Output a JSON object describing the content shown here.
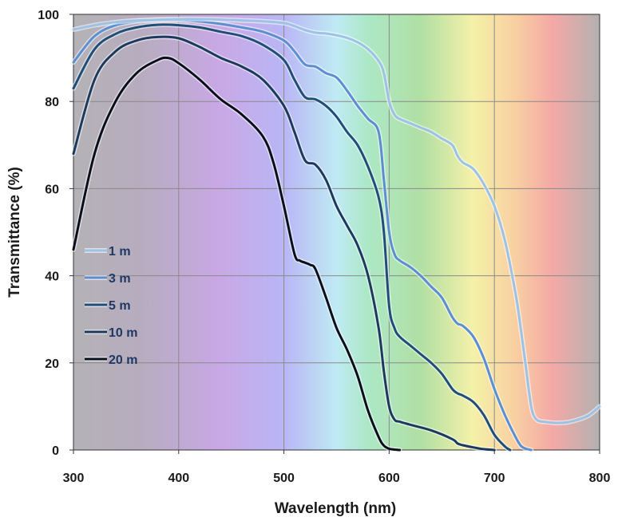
{
  "chart_data": {
    "type": "line",
    "xlabel": "Wavelength (nm)",
    "ylabel": "Transmittance (%)",
    "xlim": [
      300,
      800
    ],
    "ylim": [
      0,
      100
    ],
    "xticks": [
      300,
      400,
      500,
      600,
      700,
      800
    ],
    "yticks": [
      0,
      20,
      40,
      60,
      80,
      100
    ],
    "grid": true,
    "legend_position": "left",
    "background": "visible spectrum gradient",
    "spectrum_colors": [
      "#b3b3b3",
      "#c3a6e0",
      "#b7b7f5",
      "#bdeef2",
      "#a9e6b5",
      "#b0e0a2",
      "#f8f0a4",
      "#fbd0a0",
      "#f5a6a0",
      "#b3b3b3"
    ],
    "series": [
      {
        "name": "1 m",
        "color": "#9cc3e6",
        "x": [
          300,
          320,
          340,
          360,
          380,
          400,
          420,
          440,
          460,
          480,
          500,
          510,
          520,
          530,
          540,
          550,
          560,
          570,
          580,
          590,
          595,
          600,
          605,
          610,
          620,
          630,
          640,
          650,
          660,
          665,
          670,
          680,
          690,
          700,
          710,
          720,
          725,
          730,
          735,
          740,
          750,
          760,
          770,
          780,
          790,
          800
        ],
        "y": [
          96.5,
          97.5,
          98.2,
          98.6,
          98.8,
          98.9,
          98.9,
          98.8,
          98.6,
          98.4,
          98,
          97.3,
          96.4,
          95.8,
          95.6,
          95.2,
          94.6,
          93.6,
          92,
          89.3,
          86.5,
          80,
          77,
          76,
          75,
          74,
          73,
          71.5,
          70,
          67.5,
          66,
          64.5,
          61,
          56,
          48,
          36,
          28,
          19,
          10,
          7,
          6.4,
          6.2,
          6.4,
          7,
          8,
          10
        ]
      },
      {
        "name": "3 m",
        "color": "#5b8fd1",
        "x": [
          300,
          320,
          340,
          360,
          380,
          400,
          420,
          440,
          460,
          480,
          500,
          510,
          520,
          530,
          540,
          550,
          560,
          570,
          580,
          590,
          595,
          600,
          605,
          610,
          620,
          630,
          640,
          650,
          660,
          665,
          670,
          680,
          690,
          700,
          710,
          720,
          725,
          730,
          735
        ],
        "y": [
          89,
          95,
          97.5,
          98.4,
          98.7,
          98.7,
          98.4,
          97.8,
          97,
          96,
          94,
          91.5,
          88.5,
          88,
          86.5,
          85.5,
          82.5,
          79,
          76,
          73,
          62,
          50,
          45,
          43.5,
          42,
          40,
          37.5,
          35,
          30.5,
          29,
          28.5,
          26,
          21,
          14,
          8,
          3,
          1,
          0.3,
          0
        ]
      },
      {
        "name": "5 m",
        "color": "#1f4e79",
        "x": [
          300,
          320,
          340,
          360,
          380,
          400,
          420,
          440,
          460,
          480,
          500,
          510,
          520,
          530,
          540,
          550,
          560,
          570,
          580,
          590,
          595,
          600,
          605,
          610,
          620,
          630,
          640,
          650,
          660,
          665,
          670,
          680,
          690,
          700,
          710,
          715
        ],
        "y": [
          83,
          92,
          95.5,
          97,
          97.6,
          97.5,
          97,
          96,
          95,
          93,
          89.5,
          85,
          81,
          80.5,
          79,
          76.5,
          73,
          70,
          65,
          58,
          50,
          33,
          28,
          26,
          24,
          22,
          20,
          17.5,
          14,
          13,
          12.5,
          11,
          8,
          3.5,
          0.8,
          0
        ]
      },
      {
        "name": "10 m",
        "color": "#1b3a5e",
        "x": [
          300,
          320,
          340,
          360,
          380,
          400,
          420,
          440,
          460,
          480,
          500,
          510,
          520,
          530,
          540,
          550,
          560,
          570,
          580,
          590,
          595,
          600,
          605,
          610,
          620,
          640,
          660,
          665,
          670,
          680,
          690,
          700
        ],
        "y": [
          68,
          85,
          91.5,
          94,
          94.8,
          94.5,
          92.5,
          90,
          88,
          85,
          79,
          73,
          66.5,
          65.5,
          62,
          56,
          51.5,
          47,
          40,
          28,
          18,
          10,
          7,
          6.5,
          5.8,
          4.5,
          2.5,
          1.5,
          1.1,
          0.6,
          0.2,
          0
        ]
      },
      {
        "name": "20 m",
        "color": "#0a0f1c",
        "x": [
          300,
          320,
          340,
          360,
          380,
          390,
          400,
          420,
          440,
          460,
          480,
          490,
          500,
          510,
          515,
          520,
          525,
          530,
          540,
          550,
          560,
          570,
          580,
          590,
          595,
          600,
          605,
          610
        ],
        "y": [
          46,
          68,
          80,
          86.5,
          89.5,
          90,
          88.8,
          85,
          80.5,
          77,
          72,
          66,
          56,
          45,
          43.5,
          43,
          42.5,
          41.5,
          35,
          28,
          23,
          17,
          9,
          3,
          1,
          0.3,
          0.1,
          0
        ]
      }
    ]
  }
}
